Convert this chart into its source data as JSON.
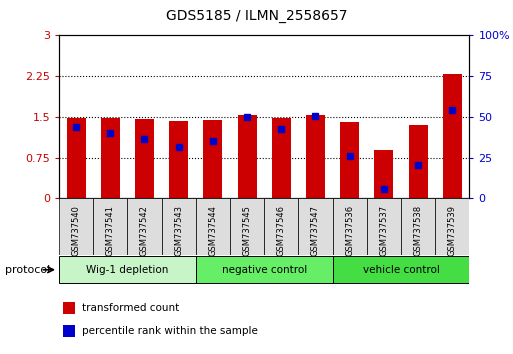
{
  "title": "GDS5185 / ILMN_2558657",
  "samples": [
    "GSM737540",
    "GSM737541",
    "GSM737542",
    "GSM737543",
    "GSM737544",
    "GSM737545",
    "GSM737546",
    "GSM737547",
    "GSM737536",
    "GSM737537",
    "GSM737538",
    "GSM737539"
  ],
  "red_values": [
    1.48,
    1.48,
    1.46,
    1.42,
    1.45,
    1.54,
    1.48,
    1.54,
    1.4,
    0.88,
    1.35,
    2.28
  ],
  "blue_values": [
    1.32,
    1.2,
    1.1,
    0.95,
    1.05,
    1.5,
    1.28,
    1.52,
    0.78,
    0.17,
    0.62,
    1.62
  ],
  "groups": [
    {
      "label": "Wig-1 depletion",
      "start": 0,
      "end": 4,
      "color": "#c8f5c8"
    },
    {
      "label": "negative control",
      "start": 4,
      "end": 8,
      "color": "#66ee66"
    },
    {
      "label": "vehicle control",
      "start": 8,
      "end": 12,
      "color": "#44dd44"
    }
  ],
  "ylim_left": [
    0,
    3
  ],
  "ylim_right": [
    0,
    100
  ],
  "yticks_left": [
    0,
    0.75,
    1.5,
    2.25,
    3
  ],
  "yticks_right": [
    0,
    25,
    50,
    75,
    100
  ],
  "ylabel_right_labels": [
    "0",
    "25",
    "50",
    "75",
    "100%"
  ],
  "bar_width": 0.55,
  "red_color": "#cc0000",
  "blue_color": "#0000cc",
  "bg_color": "#ffffff",
  "grid_color": "#000000",
  "tick_label_color": "#cc0000",
  "right_tick_color": "#0000cc"
}
